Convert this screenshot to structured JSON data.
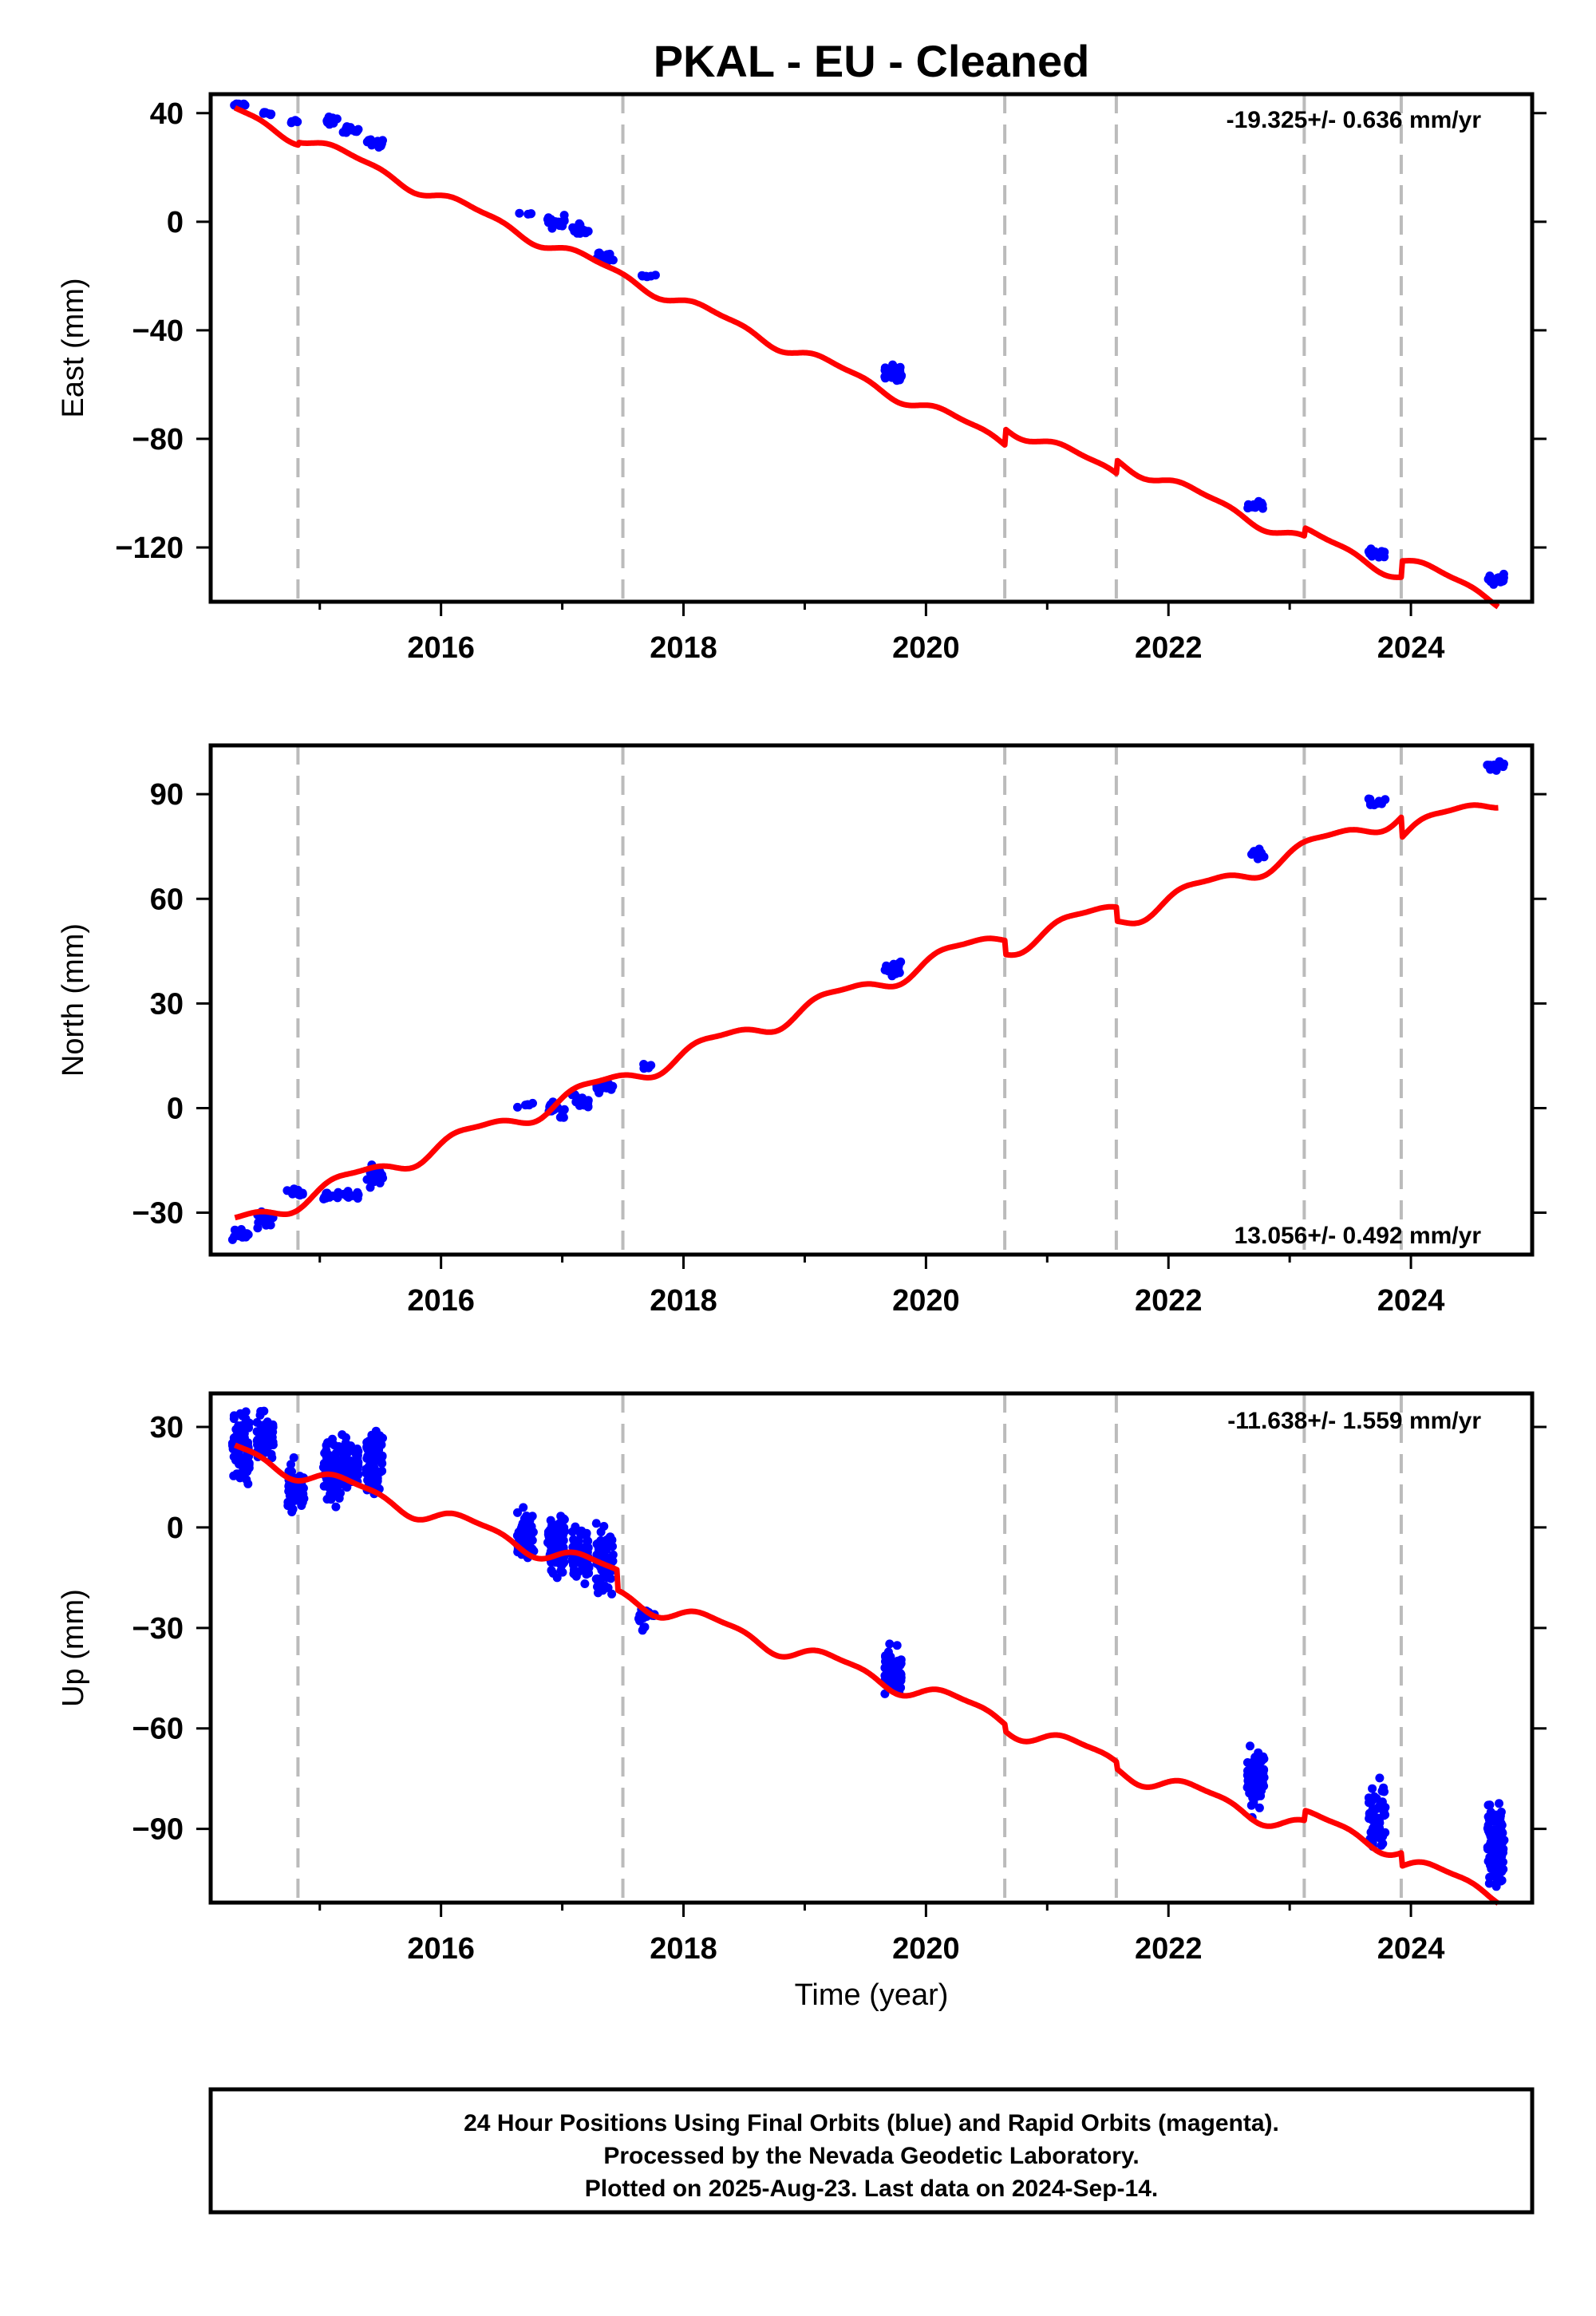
{
  "title": "PKAL  - EU - Cleaned",
  "x_axis_label": "Time (year)",
  "footer": {
    "line1": "24 Hour Positions Using Final Orbits (blue) and Rapid Orbits (magenta).",
    "line2": "Processed by the Nevada Geodetic Laboratory.",
    "line3": "Plotted on 2025-Aug-23. Last data on 2024-Sep-14."
  },
  "colors": {
    "data_points": "#0000ff",
    "model_line": "#ff0000",
    "step_lines": "#bbbbbb",
    "frame": "#000000"
  },
  "chart_data": [
    {
      "type": "scatter",
      "component": "east",
      "ylabel": "East (mm)",
      "rate_label": "-19.325+/- 0.636 mm/yr",
      "xlim": [
        2014.1,
        2025.0
      ],
      "ylim": [
        -140,
        47
      ],
      "yticks": [
        40,
        0,
        -40,
        -80,
        -120
      ],
      "ytick_labels": [
        "40",
        "0",
        "−40",
        "−80",
        "−120"
      ],
      "xticks": [
        2016,
        2018,
        2020,
        2022,
        2024
      ],
      "xtick_labels": [
        "2016",
        "2018",
        "2020",
        "2022",
        "2024"
      ],
      "step_epochs": [
        2014.82,
        2017.5,
        2020.65,
        2021.57,
        2023.12,
        2023.92
      ],
      "model": {
        "x0": 2014.3,
        "intercept": 40.9,
        "rate": -19.325,
        "seasonal_amp": 2.0,
        "steps": [
          [
            2014.82,
            1
          ],
          [
            2020.65,
            6
          ],
          [
            2021.57,
            5
          ],
          [
            2023.12,
            3
          ],
          [
            2023.92,
            6
          ]
        ],
        "xrange": [
          2014.3,
          2024.72
        ]
      },
      "series": [
        {
          "clusters": [
            [
              2014.35,
              43,
              0.5,
              2
            ],
            [
              2014.55,
              40,
              0.5,
              2
            ],
            [
              2014.8,
              37,
              0.5,
              2
            ],
            [
              2015.1,
              37,
              1,
              2
            ],
            [
              2015.25,
              34,
              1,
              2
            ],
            [
              2015.45,
              29,
              1,
              2
            ],
            [
              2016.7,
              3,
              0.3,
              2
            ],
            [
              2016.95,
              0,
              1.5,
              2
            ],
            [
              2017.15,
              -3,
              1.5,
              2
            ],
            [
              2017.35,
              -13,
              1.5,
              2
            ],
            [
              2017.7,
              -20,
              0.5,
              2
            ],
            [
              2019.73,
              -56,
              2,
              3
            ],
            [
              2022.72,
              -104,
              1,
              2
            ],
            [
              2023.72,
              -122,
              1,
              2
            ],
            [
              2024.7,
              -132,
              1.5,
              2
            ]
          ]
        }
      ]
    },
    {
      "type": "scatter",
      "component": "north",
      "ylabel": "North (mm)",
      "rate_label": "13.056+/- 0.492 mm/yr",
      "xlim": [
        2014.1,
        2025.0
      ],
      "ylim": [
        -42,
        104
      ],
      "yticks": [
        90,
        60,
        30,
        0,
        -30
      ],
      "ytick_labels": [
        "90",
        "60",
        "30",
        "0",
        "−30"
      ],
      "xticks": [
        2016,
        2018,
        2020,
        2022,
        2024
      ],
      "xtick_labels": [
        "2016",
        "2018",
        "2020",
        "2022",
        "2024"
      ],
      "step_epochs": [
        2014.82,
        2017.5,
        2020.65,
        2021.57,
        2023.12,
        2023.92
      ],
      "model": {
        "x0": 2014.3,
        "intercept": -33.0,
        "rate": 13.056,
        "seasonal_amp": 2.5,
        "steps": [
          [
            2014.82,
            0
          ],
          [
            2020.65,
            -4
          ],
          [
            2021.57,
            -4
          ],
          [
            2023.12,
            0
          ],
          [
            2023.92,
            -6
          ]
        ],
        "xrange": [
          2014.3,
          2024.72
        ]
      },
      "series": [
        {
          "clusters": [
            [
              2014.35,
              -36,
              1.5,
              2
            ],
            [
              2014.55,
              -32,
              1.5,
              2
            ],
            [
              2014.8,
              -24,
              1,
              2
            ],
            [
              2015.1,
              -25,
              1,
              2
            ],
            [
              2015.25,
              -25,
              1,
              2
            ],
            [
              2015.45,
              -20,
              2,
              2
            ],
            [
              2016.7,
              1,
              0.5,
              2
            ],
            [
              2016.95,
              0,
              1.5,
              2
            ],
            [
              2017.15,
              2,
              1.5,
              2
            ],
            [
              2017.35,
              6,
              1.5,
              2
            ],
            [
              2017.7,
              12,
              0.5,
              2
            ],
            [
              2019.73,
              40,
              1.5,
              3
            ],
            [
              2022.72,
              73,
              1,
              2
            ],
            [
              2023.72,
              88,
              1,
              2
            ],
            [
              2024.7,
              98,
              1,
              2
            ]
          ]
        }
      ]
    },
    {
      "type": "scatter",
      "component": "up",
      "ylabel": "Up (mm)",
      "rate_label": "-11.638+/- 1.559 mm/yr",
      "xlim": [
        2014.1,
        2025.0
      ],
      "ylim": [
        -112,
        40
      ],
      "yticks": [
        30,
        0,
        -30,
        -60,
        -90
      ],
      "ytick_labels": [
        "30",
        "0",
        "−30",
        "−60",
        "−90"
      ],
      "xticks": [
        2016,
        2018,
        2020,
        2022,
        2024
      ],
      "xtick_labels": [
        "2016",
        "2018",
        "2020",
        "2022",
        "2024"
      ],
      "step_epochs": [
        2014.82,
        2017.5,
        2020.65,
        2021.57,
        2023.12,
        2023.92
      ],
      "model": {
        "x0": 2014.3,
        "intercept": 23.0,
        "rate": -11.638,
        "seasonal_amp": 2.5,
        "steps": [
          [
            2014.82,
            0
          ],
          [
            2017.45,
            -6
          ],
          [
            2020.65,
            -2
          ],
          [
            2021.57,
            -2
          ],
          [
            2023.12,
            3
          ],
          [
            2023.92,
            -4
          ]
        ],
        "xrange": [
          2014.3,
          2024.72
        ]
      },
      "series": [
        {
          "clusters": [
            [
              2014.35,
              23,
              7,
              2
            ],
            [
              2014.55,
              26,
              5,
              2
            ],
            [
              2014.8,
              12,
              5,
              2
            ],
            [
              2015.1,
              16,
              6,
              2
            ],
            [
              2015.25,
              19,
              5,
              2
            ],
            [
              2015.45,
              20,
              6,
              2
            ],
            [
              2016.7,
              -2,
              5,
              2
            ],
            [
              2016.95,
              -5,
              7,
              2
            ],
            [
              2017.15,
              -8,
              6,
              2
            ],
            [
              2017.35,
              -10,
              7,
              2
            ],
            [
              2017.7,
              -27,
              2,
              2
            ],
            [
              2019.73,
              -43,
              4,
              3
            ],
            [
              2022.72,
              -76,
              6,
              2
            ],
            [
              2023.72,
              -85,
              6,
              2
            ],
            [
              2024.7,
              -95,
              9,
              2
            ]
          ]
        }
      ]
    }
  ]
}
